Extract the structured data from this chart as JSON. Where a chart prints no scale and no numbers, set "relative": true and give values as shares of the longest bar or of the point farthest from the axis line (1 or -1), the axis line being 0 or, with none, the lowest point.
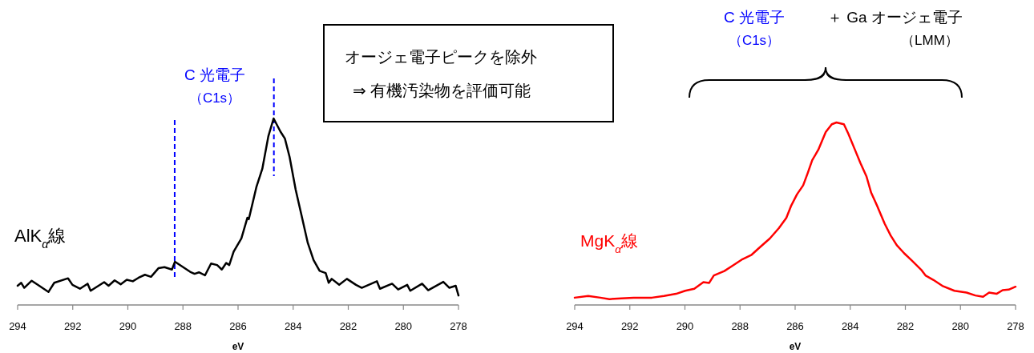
{
  "chart_data": [
    {
      "type": "line",
      "relative": true,
      "xlabel": "eV",
      "xlim": [
        294,
        278
      ],
      "xticks": [
        294,
        292,
        290,
        288,
        286,
        284,
        282,
        280,
        278
      ],
      "series": [
        {
          "name": "AlK$_{α}$線",
          "color": "#000000",
          "x": [
            294.0,
            293.87,
            293.76,
            293.49,
            293.27,
            292.88,
            292.67,
            292.17,
            292.01,
            291.74,
            291.46,
            291.35,
            290.86,
            290.7,
            290.48,
            290.26,
            290.04,
            289.82,
            289.61,
            289.38,
            289.16,
            288.89,
            288.67,
            288.4,
            288.29,
            288.07,
            287.74,
            287.58,
            287.42,
            287.2,
            286.98,
            286.76,
            286.59,
            286.43,
            286.32,
            286.16,
            285.88,
            285.66,
            285.61,
            285.33,
            285.12,
            284.9,
            284.71,
            284.46,
            284.3,
            284.13,
            283.91,
            283.69,
            283.47,
            283.26,
            283.04,
            282.82,
            282.71,
            282.6,
            282.33,
            282.05,
            281.72,
            281.51,
            280.96,
            280.85,
            280.41,
            280.19,
            279.86,
            279.75,
            279.32,
            279.1,
            278.55,
            278.33,
            278.1,
            278.0
          ],
          "values": [
            0.103,
            0.119,
            0.092,
            0.13,
            0.108,
            0.07,
            0.119,
            0.143,
            0.108,
            0.087,
            0.114,
            0.076,
            0.122,
            0.103,
            0.132,
            0.111,
            0.135,
            0.127,
            0.146,
            0.162,
            0.151,
            0.197,
            0.203,
            0.19,
            0.232,
            0.21,
            0.178,
            0.167,
            0.175,
            0.159,
            0.222,
            0.214,
            0.19,
            0.225,
            0.214,
            0.286,
            0.357,
            0.468,
            0.46,
            0.635,
            0.73,
            0.905,
            1.0,
            0.929,
            0.892,
            0.794,
            0.619,
            0.476,
            0.333,
            0.241,
            0.183,
            0.171,
            0.119,
            0.14,
            0.108,
            0.14,
            0.108,
            0.092,
            0.127,
            0.087,
            0.114,
            0.083,
            0.108,
            0.076,
            0.114,
            0.079,
            0.124,
            0.092,
            0.103,
            0.051
          ]
        }
      ],
      "ref_lines": [
        {
          "axis": "x",
          "value": 288.3,
          "color": "#0000ff",
          "line_style": "dashed"
        },
        {
          "axis": "x",
          "value": 284.7,
          "color": "#0000ff",
          "line_style": "dashed"
        }
      ],
      "annotations": [
        "C 光電子",
        "（C1s）",
        "オージェ電子ピークを除外",
        "⇒ 有機汚染物を評価可能"
      ]
    },
    {
      "type": "line",
      "relative": true,
      "xlabel": "eV",
      "xlim": [
        294,
        278
      ],
      "xticks": [
        294,
        292,
        290,
        288,
        286,
        284,
        282,
        280,
        278
      ],
      "series": [
        {
          "name": "MgK$_{α}$線",
          "color": "#ff0000",
          "x": [
            294.0,
            293.51,
            293.07,
            292.74,
            292.3,
            291.86,
            291.2,
            290.76,
            290.32,
            289.99,
            289.66,
            289.33,
            289.12,
            288.95,
            288.57,
            288.24,
            287.91,
            287.58,
            287.25,
            286.92,
            286.59,
            286.32,
            286.15,
            285.93,
            285.71,
            285.55,
            285.38,
            285.16,
            284.89,
            284.67,
            284.5,
            284.23,
            284.07,
            283.85,
            283.63,
            283.41,
            283.24,
            283.02,
            282.75,
            282.53,
            282.31,
            282.04,
            281.76,
            281.43,
            281.27,
            280.99,
            280.66,
            280.22,
            279.78,
            279.46,
            279.18,
            278.96,
            278.69,
            278.47,
            278.25,
            278.0
          ],
          "values": [
            0.04,
            0.049,
            0.04,
            0.032,
            0.036,
            0.04,
            0.04,
            0.049,
            0.061,
            0.078,
            0.089,
            0.125,
            0.121,
            0.162,
            0.186,
            0.218,
            0.251,
            0.275,
            0.32,
            0.364,
            0.421,
            0.477,
            0.542,
            0.607,
            0.655,
            0.72,
            0.793,
            0.85,
            0.947,
            0.99,
            1.0,
            0.99,
            0.939,
            0.858,
            0.777,
            0.704,
            0.615,
            0.542,
            0.445,
            0.38,
            0.327,
            0.283,
            0.243,
            0.194,
            0.162,
            0.138,
            0.105,
            0.078,
            0.068,
            0.052,
            0.045,
            0.068,
            0.061,
            0.081,
            0.084,
            0.1
          ]
        }
      ],
      "annotations": [
        "C 光電子",
        "（C1s）",
        "＋ Ga オージェ電子",
        "（LMM）"
      ]
    }
  ]
}
